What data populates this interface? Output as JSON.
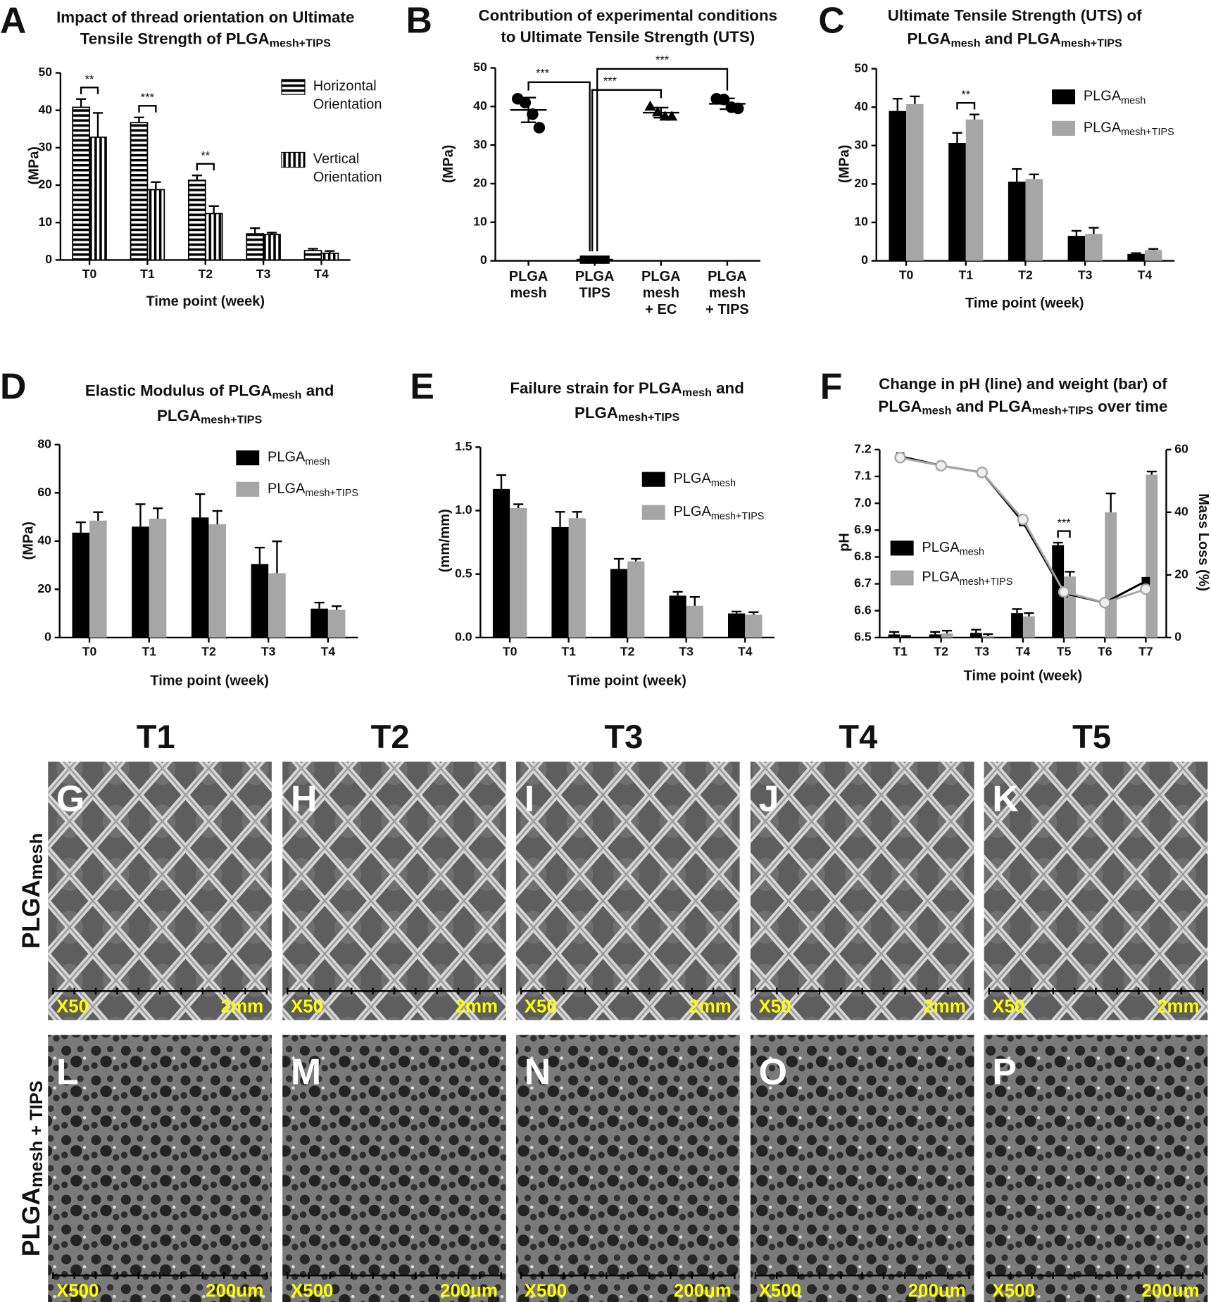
{
  "chart_data": [
    {
      "type": "bar",
      "panel": "A",
      "title": [
        [
          "Impact of thread orientation on Ultimate"
        ],
        [
          "Tensile Strength of PLGA",
          {
            "sub": "mesh+TIPS"
          }
        ]
      ],
      "xlabel": "Time point (week)",
      "ylabel": "(MPa)",
      "categories": [
        "T0",
        "T1",
        "T2",
        "T3",
        "T4"
      ],
      "ylim": [
        0,
        50
      ],
      "yticks": [
        0,
        10,
        20,
        30,
        40,
        50
      ],
      "series": [
        {
          "name": [
            [
              "Horizontal"
            ],
            [
              "Orientation"
            ]
          ],
          "color": "#000000",
          "pattern": "horizontal",
          "values": [
            40.8,
            36.7,
            21.3,
            7.0,
            2.5
          ],
          "errors": [
            2.2,
            1.4,
            1.3,
            1.5,
            0.5
          ]
        },
        {
          "name": [
            [
              "Vertical"
            ],
            [
              "Orientation"
            ]
          ],
          "color": "#000000",
          "pattern": "vertical",
          "values": [
            32.8,
            18.8,
            12.4,
            6.8,
            1.8
          ],
          "errors": [
            6.5,
            2.0,
            2.0,
            0.5,
            0.6
          ]
        }
      ],
      "annotations": [
        {
          "label": "**",
          "category": 0
        },
        {
          "label": "***",
          "category": 1
        },
        {
          "label": "**",
          "category": 2
        }
      ]
    },
    {
      "type": "dot",
      "panel": "B",
      "title": [
        [
          "Contribution of experimental conditions"
        ],
        [
          "to Ultimate Tensile Strength (UTS)"
        ]
      ],
      "ylabel": "(MPa)",
      "categories": [
        [
          "PLGA",
          "mesh"
        ],
        [
          "PLGA",
          "TIPS"
        ],
        [
          "PLGA",
          "mesh",
          "+ EC"
        ],
        [
          "PLGA",
          "mesh",
          "+ TIPS"
        ]
      ],
      "ylim": [
        0,
        50
      ],
      "yticks": [
        0,
        10,
        20,
        30,
        40,
        50
      ],
      "color": "#000000",
      "series": [
        {
          "marker": "circle",
          "values": [
            42,
            41,
            38,
            34.5
          ],
          "mean": 39.1,
          "sd": 3.2
        },
        {
          "marker": "square",
          "values": [
            0.3,
            0.3,
            0.3,
            0.3
          ],
          "mean": 0.3,
          "sd": 0.05
        },
        {
          "marker": "triangle",
          "values": [
            40,
            38.5,
            37.4,
            37.4
          ],
          "mean": 38.4,
          "sd": 1.3
        },
        {
          "marker": "circle",
          "values": [
            42,
            41.8,
            39.8,
            39.5
          ],
          "mean": 40.7,
          "sd": 1.4
        }
      ],
      "comparisons": [
        {
          "label": "***",
          "pair": [
            0,
            1
          ]
        },
        {
          "label": "***",
          "pair": [
            1,
            2
          ]
        },
        {
          "label": "***",
          "pair": [
            1,
            3
          ]
        }
      ]
    },
    {
      "type": "bar",
      "panel": "C",
      "title": [
        [
          "Ultimate Tensile Strength (UTS) of"
        ],
        [
          "PLGA",
          {
            "sub": "mesh"
          },
          " and PLGA",
          {
            "sub": "mesh+TIPS"
          }
        ]
      ],
      "xlabel": "Time point (week)",
      "ylabel": "(MPa)",
      "categories": [
        "T0",
        "T1",
        "T2",
        "T3",
        "T4"
      ],
      "ylim": [
        0,
        50
      ],
      "yticks": [
        0,
        10,
        20,
        30,
        40,
        50
      ],
      "series": [
        {
          "name": [
            [
              "PLGA",
              {
                "sub": "mesh"
              }
            ]
          ],
          "color": "#000000",
          "values": [
            39,
            30.7,
            20.6,
            6.5,
            1.8
          ],
          "errors": [
            3.2,
            2.6,
            3.3,
            1.3,
            0.2
          ]
        },
        {
          "name": [
            [
              "PLGA",
              {
                "sub": "mesh+TIPS"
              }
            ]
          ],
          "color": "#a6a6a6",
          "values": [
            40.8,
            36.8,
            21.3,
            7.0,
            2.8
          ],
          "errors": [
            2.0,
            1.3,
            1.2,
            1.6,
            0.3
          ]
        }
      ],
      "annotations": [
        {
          "label": "**",
          "category": 1
        }
      ]
    },
    {
      "type": "bar",
      "panel": "D",
      "title": [
        [
          "Elastic Modulus of PLGA",
          {
            "sub": "mesh"
          },
          " and"
        ],
        [
          "PLGA",
          {
            "sub": "mesh+TIPS"
          }
        ]
      ],
      "xlabel": "Time point (week)",
      "ylabel": "(MPa)",
      "categories": [
        "T0",
        "T1",
        "T2",
        "T3",
        "T4"
      ],
      "ylim": [
        0,
        80
      ],
      "yticks": [
        0,
        20,
        40,
        60,
        80
      ],
      "series": [
        {
          "name": [
            [
              "PLGA",
              {
                "sub": "mesh"
              }
            ]
          ],
          "color": "#000000",
          "values": [
            43.5,
            46,
            49.8,
            30.5,
            12
          ],
          "errors": [
            4.3,
            9.3,
            9.7,
            6.8,
            2.5
          ]
        },
        {
          "name": [
            [
              "PLGA",
              {
                "sub": "mesh+TIPS"
              }
            ]
          ],
          "color": "#a6a6a6",
          "values": [
            48.5,
            49.3,
            47,
            26.7,
            11.5
          ],
          "errors": [
            3.5,
            4.3,
            5.5,
            13.2,
            1.5
          ]
        }
      ]
    },
    {
      "type": "bar",
      "panel": "E",
      "title": [
        [
          "Failure strain for PLGA",
          {
            "sub": "mesh"
          },
          " and"
        ],
        [
          "PLGA",
          {
            "sub": "mesh+TIPS"
          }
        ]
      ],
      "xlabel": "Time point (week)",
      "ylabel": "(mm/mm)",
      "categories": [
        "T0",
        "T1",
        "T2",
        "T3",
        "T4"
      ],
      "ylim": [
        0,
        1.5
      ],
      "yticks": [
        {
          "value": 0,
          "label": "0.0"
        },
        0.5,
        {
          "value": 1,
          "label": "1.0"
        },
        1.5
      ],
      "series": [
        {
          "name": [
            [
              "PLGA",
              {
                "sub": "mesh"
              }
            ]
          ],
          "color": "#000000",
          "values": [
            1.17,
            0.87,
            0.54,
            0.33,
            0.19
          ],
          "errors": [
            0.11,
            0.12,
            0.08,
            0.03,
            0.015
          ]
        },
        {
          "name": [
            [
              "PLGA",
              {
                "sub": "mesh+TIPS"
              }
            ]
          ],
          "color": "#a6a6a6",
          "values": [
            1.02,
            0.94,
            0.6,
            0.25,
            0.18
          ],
          "errors": [
            0.03,
            0.05,
            0.02,
            0.07,
            0.02
          ]
        }
      ]
    },
    {
      "type": "bar",
      "panel": "F",
      "title": [
        [
          "Change in pH (line) and weight (bar) of"
        ],
        [
          "PLGA",
          {
            "sub": "mesh"
          },
          " and PLGA",
          {
            "sub": "mesh+TIPS"
          },
          " over time"
        ]
      ],
      "xlabel": "Time point (week)",
      "ylabel": "pH",
      "y2label": "Mass Loss (%)",
      "categories": [
        "T1",
        "T2",
        "T3",
        "T4",
        "T5",
        "T6",
        "T7"
      ],
      "ylim": [
        6.5,
        7.2
      ],
      "yticks": [
        6.5,
        6.6,
        6.7,
        6.8,
        6.9,
        {
          "value": 7,
          "label": "7.0"
        },
        7.1,
        7.2
      ],
      "y2lim": [
        0,
        60
      ],
      "y2ticks": [
        0,
        20,
        40,
        60
      ],
      "series": [
        {
          "name": [
            [
              "PLGA",
              {
                "sub": "mesh"
              }
            ]
          ],
          "color": "#000000",
          "axis": "y2",
          "values": [
            1,
            1,
            1.5,
            7.8,
            29.5,
            null,
            null
          ],
          "errors": [
            0.8,
            0.8,
            1,
            1.3,
            0.8,
            null,
            null
          ]
        },
        {
          "name": [
            [
              "PLGA",
              {
                "sub": "mesh+TIPS"
              }
            ]
          ],
          "color": "#a6a6a6",
          "axis": "y2",
          "values": [
            0,
            1.3,
            0.5,
            6.8,
            19.5,
            40,
            52
          ],
          "errors": [
            0.5,
            0.9,
            0.6,
            1,
            1.5,
            6,
            1
          ]
        },
        {
          "type": "line",
          "color": "#000000",
          "marker": "square",
          "values": [
            7.175,
            7.14,
            7.115,
            6.93,
            6.665,
            6.63,
            6.71
          ]
        },
        {
          "type": "line",
          "color": "#a6a6a6",
          "marker": "circle",
          "values": [
            7.17,
            7.14,
            7.115,
            6.94,
            6.67,
            6.63,
            6.68
          ]
        }
      ],
      "annotations": [
        {
          "label": "***",
          "category": 4
        }
      ]
    }
  ],
  "micrographs": {
    "columns": [
      "T1",
      "T2",
      "T3",
      "T4",
      "T5"
    ],
    "rows": [
      {
        "label": [
          [
            "PLGA",
            {
              "sub": "mesh"
            }
          ]
        ],
        "panels": [
          "G",
          "H",
          "I",
          "J",
          "K"
        ],
        "magnification": "X50",
        "scale": "2mm"
      },
      {
        "label": [
          [
            "PLGA",
            {
              "sub": "mesh + TIPS"
            }
          ]
        ],
        "panels": [
          "L",
          "M",
          "N",
          "O",
          "P"
        ],
        "magnification": "X500",
        "scale": "200um"
      }
    ]
  }
}
